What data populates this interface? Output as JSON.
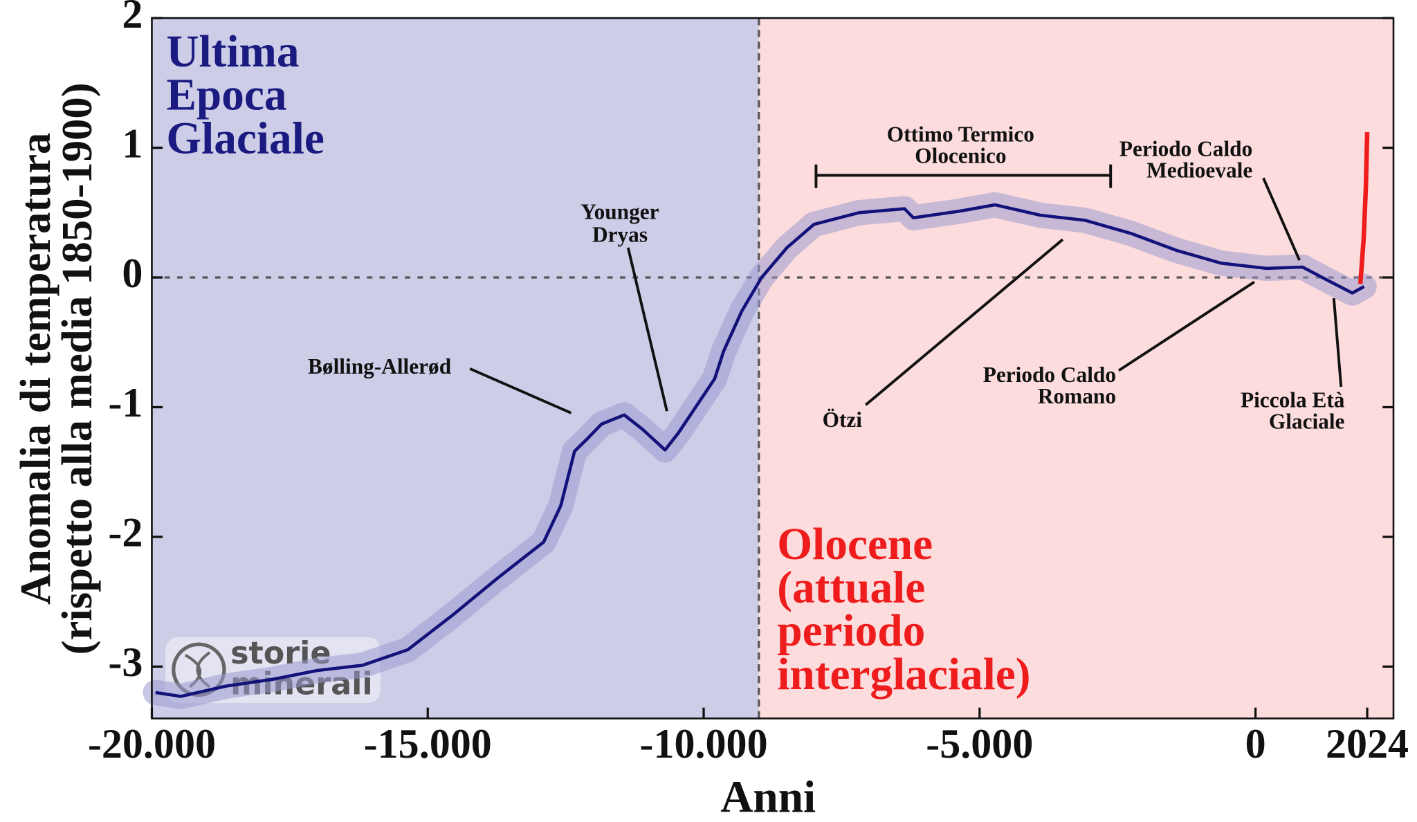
{
  "chart_data": {
    "type": "line",
    "title_lines": [],
    "xlabel": "Anni",
    "ylabel": [
      "Anomalia di temperatura",
      "(rispetto alla media 1850-1900)"
    ],
    "xlim": [
      -20000,
      2500
    ],
    "ylim": [
      -3.4,
      2
    ],
    "xticks": [
      {
        "value": -20000,
        "label": "-20.000"
      },
      {
        "value": -15000,
        "label": "-15.000"
      },
      {
        "value": -10000,
        "label": "-10.000"
      },
      {
        "value": -5000,
        "label": "-5.000"
      },
      0,
      2024
    ],
    "yticks": [
      2,
      1,
      0,
      -1,
      -2,
      -3
    ],
    "boundary_x": -9000,
    "glacial_color": "#cdcde8",
    "holocene_color": "#fcdcdc",
    "regions": [
      {
        "lines": [
          "Ultima",
          "Epoca",
          "Glaciale"
        ],
        "color": "#1a1a80"
      },
      {
        "lines": [
          "Olocene",
          "(attuale",
          "periodo",
          "interglaciale)"
        ],
        "color": "#ee1c1c"
      }
    ],
    "series": [
      {
        "color": "#12127a",
        "band_color": "#9a9ad0",
        "x": [
          -19934,
          -19475,
          -18650,
          -17830,
          -17000,
          -16180,
          -15360,
          -14540,
          -13740,
          -12900,
          -12590,
          -12340,
          -12100,
          -11850,
          -11440,
          -11110,
          -10700,
          -10460,
          -10130,
          -9800,
          -9640,
          -9310,
          -8950,
          -8490,
          -8000,
          -7180,
          -6360,
          -6200,
          -5380,
          -4720,
          -3900,
          -3080,
          -2260,
          -1440,
          -620,
          197,
          852,
          1344,
          1754,
          1967
        ],
        "values": [
          -3.2,
          -3.23,
          -3.15,
          -3.1,
          -3.03,
          -2.99,
          -2.87,
          -2.6,
          -2.32,
          -2.04,
          -1.76,
          -1.34,
          -1.24,
          -1.13,
          -1.06,
          -1.17,
          -1.33,
          -1.2,
          -0.99,
          -0.78,
          -0.57,
          -0.26,
          0,
          0.23,
          0.41,
          0.5,
          0.53,
          0.46,
          0.51,
          0.56,
          0.48,
          0.44,
          0.34,
          0.21,
          0.11,
          0.07,
          0.08,
          -0.03,
          -0.12,
          -0.07
        ]
      },
      {
        "color": "#ee1c1c",
        "x": [
          1900,
          1960,
          2000,
          2024
        ],
        "values": [
          -0.05,
          0.3,
          0.7,
          1.12
        ]
      }
    ],
    "annotations": [
      {
        "lines": [
          "Bølling-Allerød"
        ]
      },
      {
        "lines": [
          "Younger",
          "Dryas"
        ]
      },
      {
        "lines": [
          "Ottimo Termico",
          "Olocenico"
        ]
      },
      {
        "lines": [
          "Periodo Caldo",
          "Medioevale"
        ]
      },
      {
        "lines": [
          "Ötzi"
        ]
      },
      {
        "lines": [
          "Periodo Caldo",
          "Romano"
        ]
      },
      {
        "lines": [
          "Piccola Età",
          "Glaciale"
        ]
      }
    ],
    "watermark": [
      "storie",
      "minerali"
    ]
  }
}
